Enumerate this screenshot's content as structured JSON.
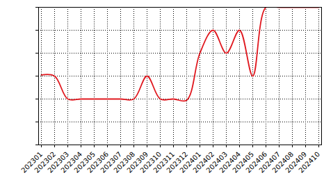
{
  "chart_data": {
    "type": "line",
    "categories": [
      "202301",
      "202302",
      "202303",
      "202304",
      "202305",
      "202306",
      "202307",
      "202308",
      "202309",
      "202310",
      "202311",
      "202312",
      "202401",
      "202402",
      "202403",
      "202404",
      "202405",
      "202406",
      "202407",
      "202408",
      "202409",
      "202410"
    ],
    "values": [
      3.05,
      3.0,
      2.0,
      2.0,
      2.0,
      2.0,
      2.0,
      2.0,
      3.0,
      2.0,
      2.0,
      1.95,
      4.0,
      5.0,
      4.0,
      5.0,
      3.0,
      6.0,
      6.0,
      6.0,
      6.0,
      6.0
    ],
    "color": "#e0181f",
    "line_style": "smooth",
    "ylim": [
      0,
      6
    ],
    "yticks": [
      0,
      1,
      2,
      3,
      4,
      5,
      6
    ],
    "grid": true,
    "tick_labels": "x"
  }
}
